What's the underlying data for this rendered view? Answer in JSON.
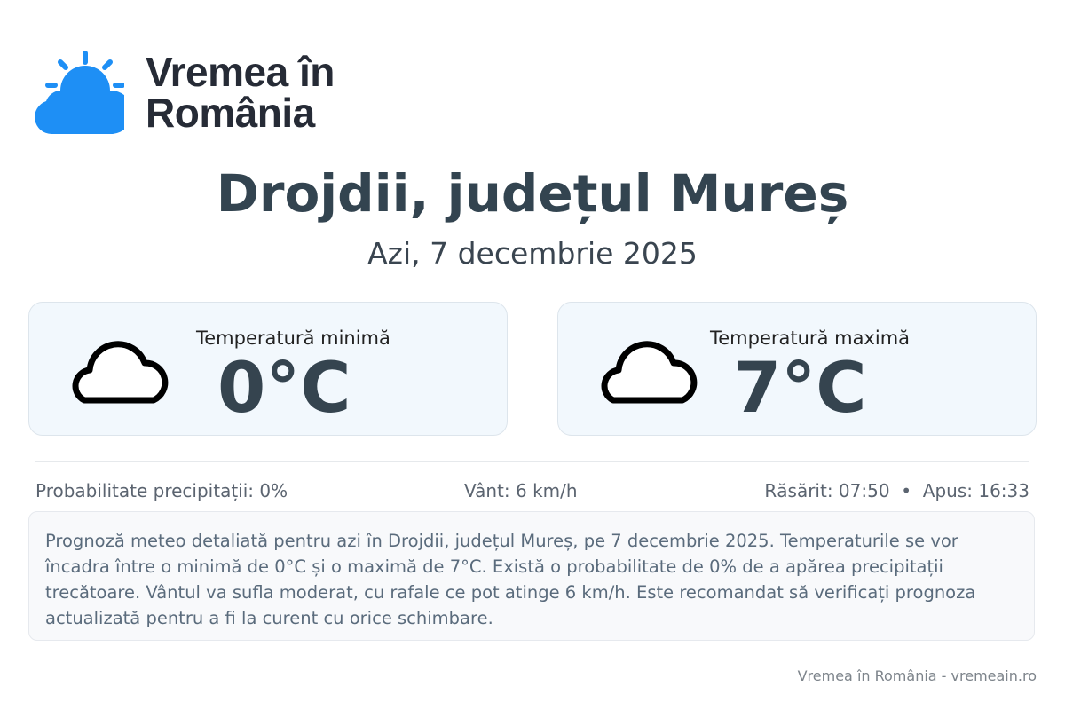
{
  "logo": {
    "line1": "Vremea în",
    "line2": "România",
    "color": "#1e8ff5"
  },
  "title": "Drojdii, județul Mureș",
  "date": "Azi, 7 decembrie 2025",
  "min": {
    "label": "Temperatură minimă",
    "value": "0°C",
    "icon": "cloud-icon"
  },
  "max": {
    "label": "Temperatură maximă",
    "value": "7°C",
    "icon": "cloud-icon"
  },
  "stats": {
    "precip": "Probabilitate precipitații: 0%",
    "wind": "Vânt: 6 km/h",
    "sun": "Răsărit: 07:50  •  Apus: 16:33"
  },
  "description": "Prognoză meteo detaliată pentru azi în Drojdii, județul Mureș, pe 7 decembrie 2025. Temperaturile se vor încadra între o minimă de 0°C și o maximă de 7°C. Există o probabilitate de 0% de a apărea precipitații trecătoare. Vântul va sufla moderat, cu rafale ce pot atinge 6 km/h. Este recomandat să verificați prognoza actualizată pentru a fi la curent cu orice schimbare.",
  "footer": "Vremea în România - vremeain.ro"
}
